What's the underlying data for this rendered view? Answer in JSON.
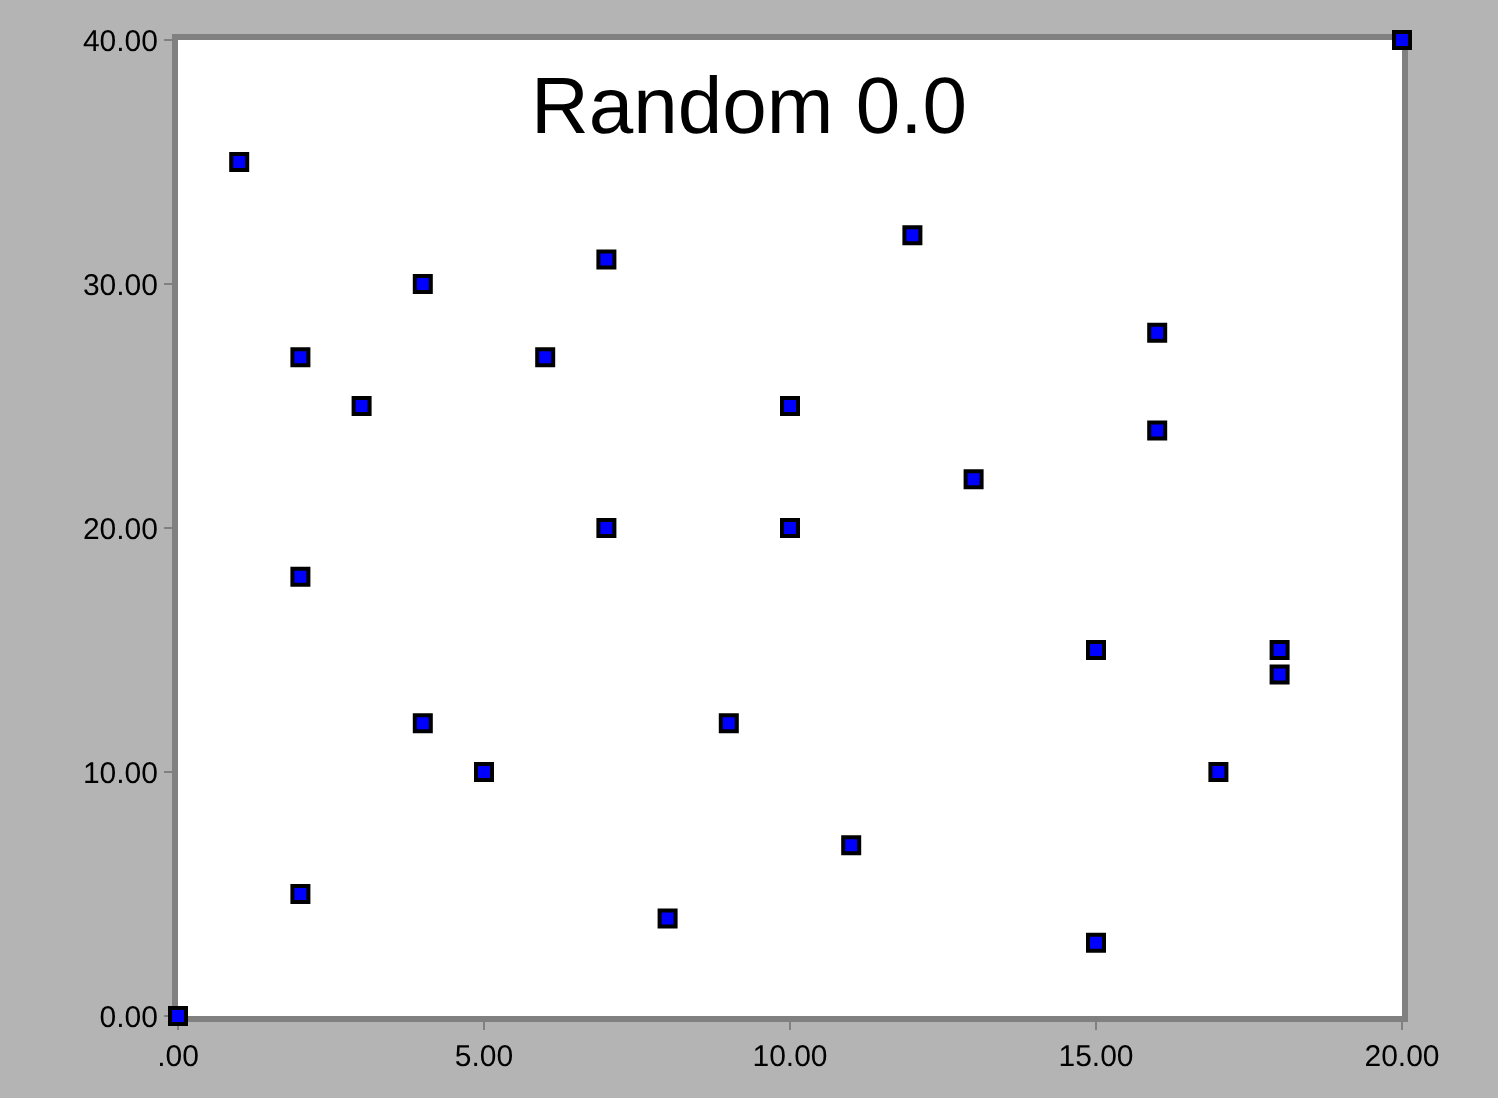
{
  "chart_data": {
    "type": "scatter",
    "title": "Random 0.0",
    "x": [
      0,
      1,
      2,
      2,
      2,
      3,
      4,
      4,
      5,
      6,
      7,
      7,
      8,
      9,
      10,
      10,
      11,
      12,
      13,
      15,
      15,
      16,
      16,
      17,
      18,
      18,
      20
    ],
    "series": [
      {
        "color": "#0000ff",
        "values": [
          0,
          35,
          27,
          18,
          5,
          25,
          30,
          12,
          10,
          27,
          31,
          20,
          4,
          12,
          25,
          20,
          7,
          32,
          22,
          15,
          3,
          28,
          24,
          10,
          15,
          14,
          40
        ]
      }
    ],
    "xlim": [
      0,
      20
    ],
    "xticks": [
      {
        "value": 0,
        "label": ".00"
      },
      {
        "value": 5,
        "label": "5.00"
      },
      {
        "value": 10,
        "label": "10.00"
      },
      {
        "value": 15,
        "label": "15.00"
      },
      {
        "value": 20,
        "label": "20.00"
      }
    ],
    "ylim": [
      0,
      40
    ],
    "yticks": [
      {
        "value": 0,
        "label": "0.00"
      },
      {
        "value": 10,
        "label": "10.00"
      },
      {
        "value": 20,
        "label": "20.00"
      },
      {
        "value": 30,
        "label": "30.00"
      },
      {
        "value": 40,
        "label": "40.00"
      }
    ],
    "marker": "square"
  }
}
